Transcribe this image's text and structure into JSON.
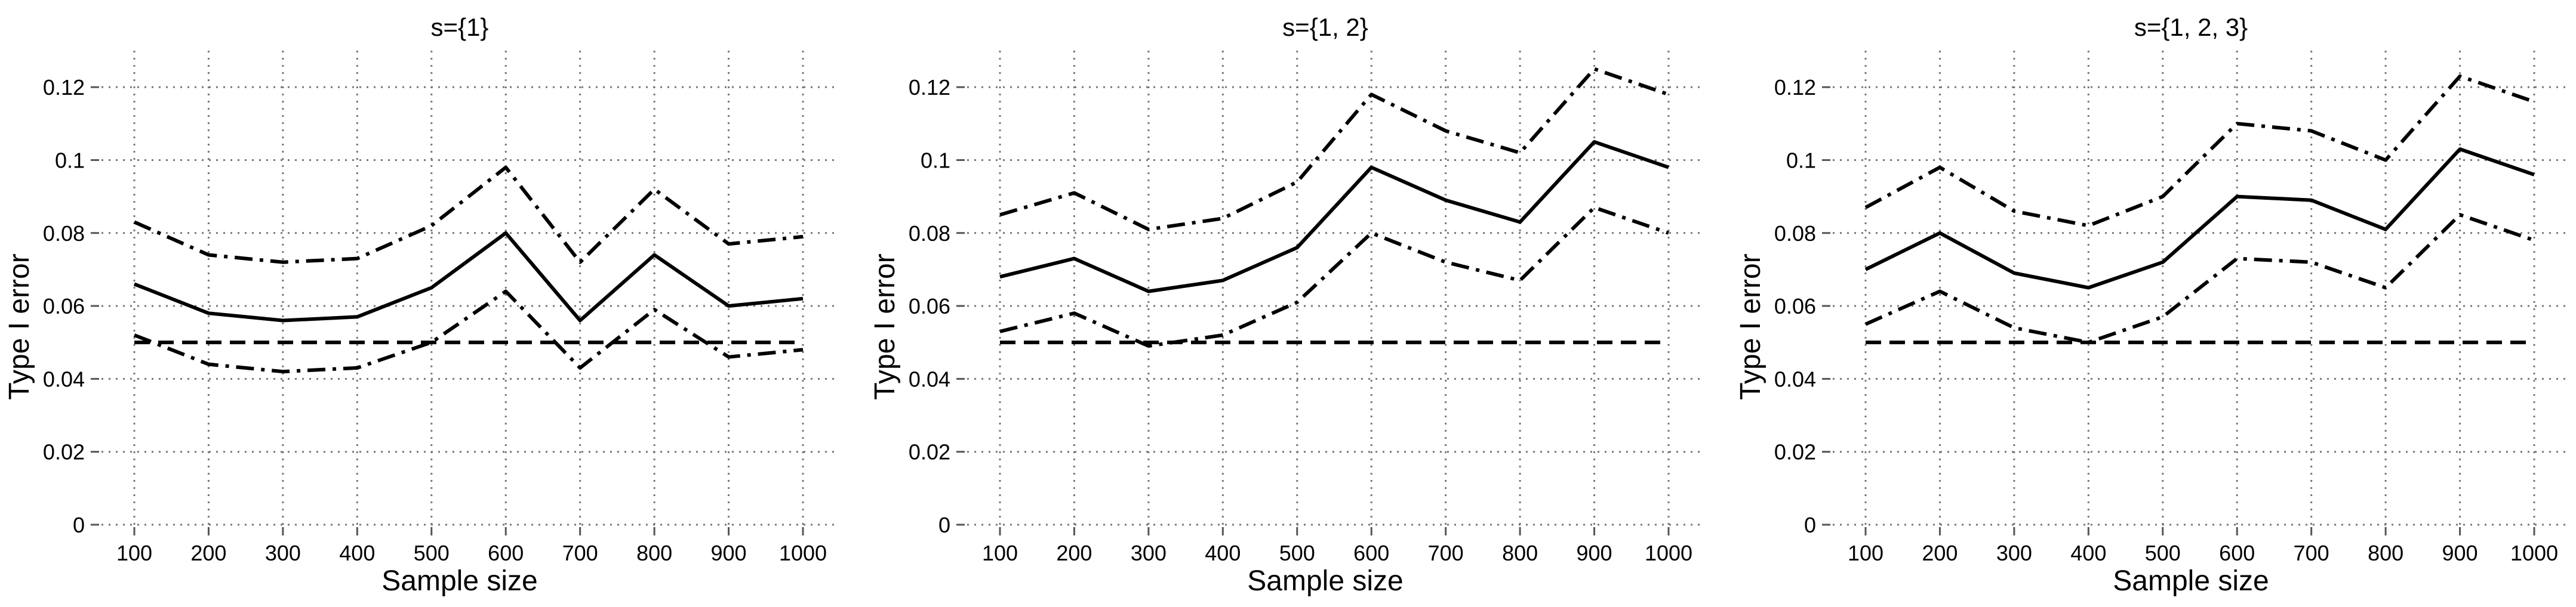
{
  "chart_data": [
    {
      "type": "line",
      "title": "s={1}",
      "xlabel": "Sample size",
      "ylabel": "Type I error",
      "x": [
        100,
        200,
        300,
        400,
        500,
        600,
        700,
        800,
        900,
        1000
      ],
      "ylim": [
        0,
        0.13
      ],
      "yticks": [
        0,
        0.02,
        0.04,
        0.06,
        0.08,
        0.1,
        0.12
      ],
      "ytick_labels": [
        "0",
        "0.02",
        "0.04",
        "0.06",
        "0.08",
        "0.1",
        "0.12"
      ],
      "grid": true,
      "series": [
        {
          "style": "solid",
          "values": [
            0.066,
            0.058,
            0.056,
            0.057,
            0.065,
            0.08,
            0.056,
            0.074,
            0.06,
            0.062
          ]
        },
        {
          "style": "dashdot",
          "values": [
            0.083,
            0.074,
            0.072,
            0.073,
            0.082,
            0.098,
            0.072,
            0.092,
            0.077,
            0.079
          ]
        },
        {
          "style": "dashdot",
          "values": [
            0.052,
            0.044,
            0.042,
            0.043,
            0.05,
            0.064,
            0.043,
            0.059,
            0.046,
            0.048
          ]
        },
        {
          "style": "dashed",
          "values": [
            0.05,
            0.05,
            0.05,
            0.05,
            0.05,
            0.05,
            0.05,
            0.05,
            0.05,
            0.05
          ]
        }
      ]
    },
    {
      "type": "line",
      "title": "s={1, 2}",
      "xlabel": "Sample size",
      "ylabel": "Type I error",
      "x": [
        100,
        200,
        300,
        400,
        500,
        600,
        700,
        800,
        900,
        1000
      ],
      "ylim": [
        0,
        0.13
      ],
      "yticks": [
        0,
        0.02,
        0.04,
        0.06,
        0.08,
        0.1,
        0.12
      ],
      "ytick_labels": [
        "0",
        "0.02",
        "0.04",
        "0.06",
        "0.08",
        "0.1",
        "0.12"
      ],
      "grid": true,
      "series": [
        {
          "style": "solid",
          "values": [
            0.068,
            0.073,
            0.064,
            0.067,
            0.076,
            0.098,
            0.089,
            0.083,
            0.105,
            0.098
          ]
        },
        {
          "style": "dashdot",
          "values": [
            0.085,
            0.091,
            0.081,
            0.084,
            0.094,
            0.118,
            0.108,
            0.102,
            0.125,
            0.118
          ]
        },
        {
          "style": "dashdot",
          "values": [
            0.053,
            0.058,
            0.049,
            0.052,
            0.061,
            0.08,
            0.072,
            0.067,
            0.087,
            0.08
          ]
        },
        {
          "style": "dashed",
          "values": [
            0.05,
            0.05,
            0.05,
            0.05,
            0.05,
            0.05,
            0.05,
            0.05,
            0.05,
            0.05
          ]
        }
      ]
    },
    {
      "type": "line",
      "title": "s={1, 2, 3}",
      "xlabel": "Sample size",
      "ylabel": "Type I error",
      "x": [
        100,
        200,
        300,
        400,
        500,
        600,
        700,
        800,
        900,
        1000
      ],
      "ylim": [
        0,
        0.13
      ],
      "yticks": [
        0,
        0.02,
        0.04,
        0.06,
        0.08,
        0.1,
        0.12
      ],
      "ytick_labels": [
        "0",
        "0.02",
        "0.04",
        "0.06",
        "0.08",
        "0.1",
        "0.12"
      ],
      "grid": true,
      "series": [
        {
          "style": "solid",
          "values": [
            0.07,
            0.08,
            0.069,
            0.065,
            0.072,
            0.09,
            0.089,
            0.081,
            0.103,
            0.096
          ]
        },
        {
          "style": "dashdot",
          "values": [
            0.087,
            0.098,
            0.086,
            0.082,
            0.09,
            0.11,
            0.108,
            0.1,
            0.123,
            0.116
          ]
        },
        {
          "style": "dashdot",
          "values": [
            0.055,
            0.064,
            0.054,
            0.05,
            0.057,
            0.073,
            0.072,
            0.065,
            0.085,
            0.078
          ]
        },
        {
          "style": "dashed",
          "values": [
            0.05,
            0.05,
            0.05,
            0.05,
            0.05,
            0.05,
            0.05,
            0.05,
            0.05,
            0.05
          ]
        }
      ]
    }
  ]
}
